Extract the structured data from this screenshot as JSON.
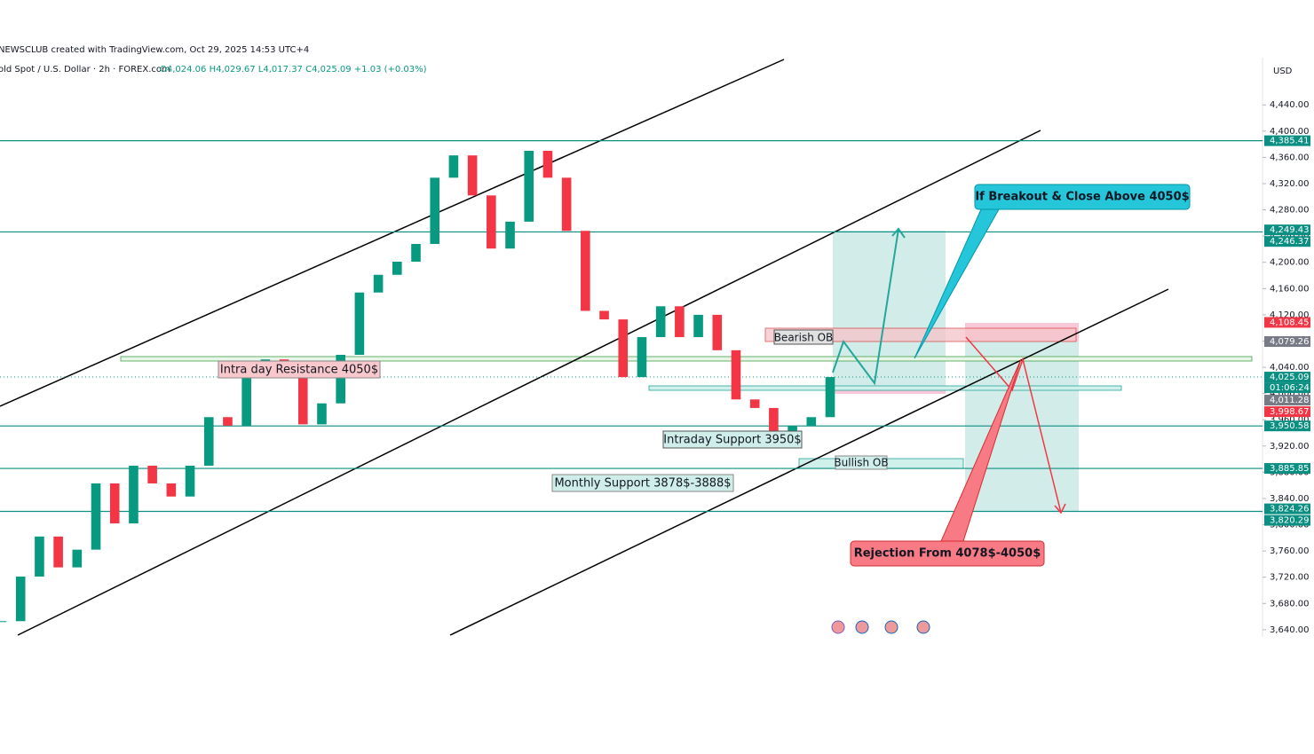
{
  "header": {
    "attribution": "NEWSCLUB created with TradingView.com, Oct 29, 2025 14:53 UTC+4",
    "symbol": "old Spot / U.S. Dollar · 2h · FOREX.com",
    "ohlc": "O4,024.06  H4,029.67  L4,017.37  C4,025.09  +1.03 (+0.03%)"
  },
  "chart_data": {
    "type": "candlestick",
    "currency": "USD",
    "close": [
      3653,
      3721,
      3782,
      3735,
      3762,
      3863,
      3802,
      3890,
      3863,
      3843,
      3890,
      3964,
      3951,
      4032,
      4052,
      4032,
      3953,
      3985,
      4059,
      4154,
      4181,
      4201,
      4228,
      4329,
      4363,
      4302,
      4221,
      4262,
      4370,
      4329,
      4248,
      4126,
      4113,
      4025,
      4086,
      4133,
      4086,
      4120,
      4066,
      3991,
      3978,
      3924,
      3951,
      3964,
      4025.09
    ],
    "up_color": "#089981",
    "down_color": "#f23645",
    "ylim": [
      3629,
      4512
    ],
    "yticks": [
      {
        "value": 3640,
        "label": "3,640.00"
      },
      {
        "value": 3680,
        "label": "3,680.00"
      },
      {
        "value": 3720,
        "label": "3,720.00"
      },
      {
        "value": 3760,
        "label": "3,760.00"
      },
      {
        "value": 3800,
        "label": "3,800.00"
      },
      {
        "value": 3840,
        "label": "3,840.00"
      },
      {
        "value": 3880,
        "label": "3,880.00"
      },
      {
        "value": 3920,
        "label": "3,920.00"
      },
      {
        "value": 3960,
        "label": "3,960.00"
      },
      {
        "value": 4000,
        "label": "4,000.00"
      },
      {
        "value": 4040,
        "label": "4,040.00"
      },
      {
        "value": 4080,
        "label": "4,080.00"
      },
      {
        "value": 4120,
        "label": "4,120.00"
      },
      {
        "value": 4160,
        "label": "4,160.00"
      },
      {
        "value": 4200,
        "label": "4,200.00"
      },
      {
        "value": 4240,
        "label": "4,240.00"
      },
      {
        "value": 4280,
        "label": "4,280.00"
      },
      {
        "value": 4320,
        "label": "4,320.00"
      },
      {
        "value": 4360,
        "label": "4,360.00"
      },
      {
        "value": 4400,
        "label": "4,400.00"
      },
      {
        "value": 4440,
        "label": "4,440.00"
      }
    ],
    "grid": false,
    "levels": [
      {
        "value": 4385.41,
        "label": "4,385.41",
        "color": "#0a8f82",
        "line": true
      },
      {
        "value": 4249.43,
        "label": "4,249.43",
        "color": "#0a8f82",
        "line": false
      },
      {
        "value": 4246.37,
        "label": "4,246.37",
        "color": "#0a8f82",
        "line": true
      },
      {
        "value": 4108.45,
        "label": "4,108.45",
        "color": "#f23645",
        "line": false
      },
      {
        "value": 4079.26,
        "label": "4,079.26",
        "color": "#787b86",
        "line": false
      },
      {
        "value": 4025.09,
        "label": "4,025.09",
        "color": "#0a8f82",
        "line": false
      },
      {
        "value": 4011.28,
        "label": "4,011.28",
        "color": "#787b86",
        "line": false
      },
      {
        "value": 3998.67,
        "label": "3,998.67",
        "color": "#f23645",
        "line": false
      },
      {
        "value": 3950.58,
        "label": "3,950.58",
        "color": "#0a8f82",
        "line": true
      },
      {
        "value": 3885.85,
        "label": "3,885.85",
        "color": "#0a8f82",
        "line": true
      },
      {
        "value": 3824.26,
        "label": "3,824.26",
        "color": "#0a8f82",
        "line": false
      },
      {
        "value": 3820.29,
        "label": "3,820.29",
        "color": "#0a8f82",
        "line": true
      }
    ],
    "countdown": "01:06:24"
  },
  "annotations": {
    "resistance": "Intra day Resistance 4050$",
    "support": "Intraday Support 3950$",
    "monthly": "Monthly Support 3878$-3888$",
    "bearish_ob": "Bearish OB",
    "bullish_ob": "Bullish OB",
    "breakout": "If Breakout & Close Above 4050$",
    "rejection": "Rejection From 4078$-4050$"
  }
}
